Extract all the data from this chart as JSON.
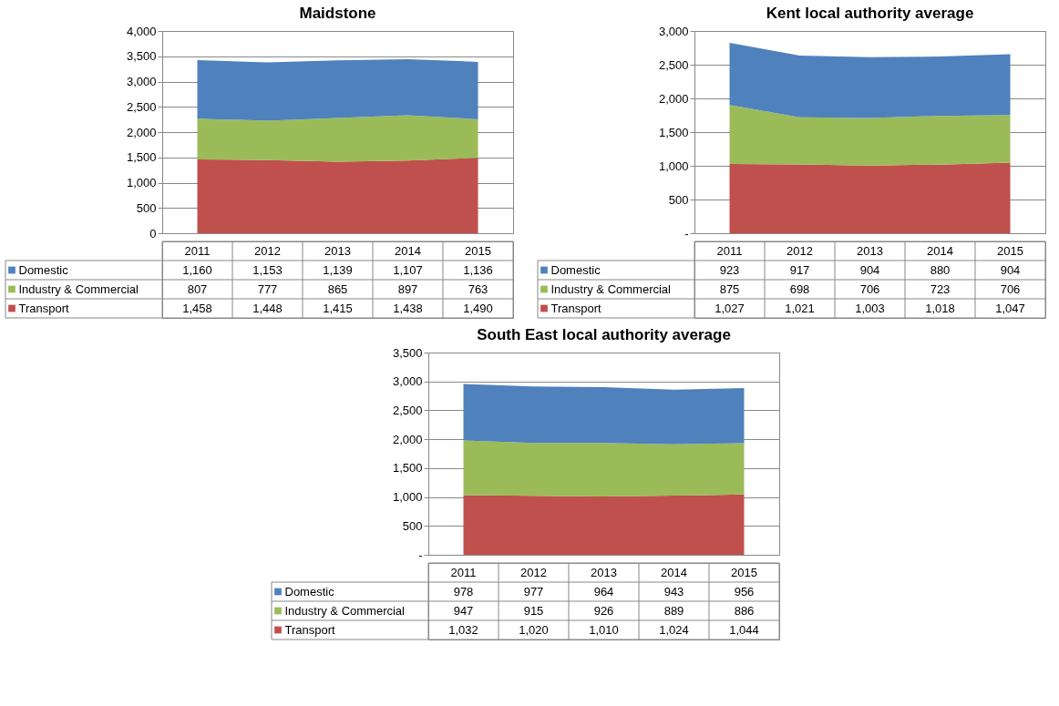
{
  "chart_data": [
    {
      "type": "area",
      "title": "Maidstone",
      "stacked": true,
      "categories": [
        "2011",
        "2012",
        "2013",
        "2014",
        "2015"
      ],
      "series": [
        {
          "name": "Transport",
          "color": "#c0504d",
          "values": [
            1458,
            1448,
            1415,
            1438,
            1490
          ],
          "value_labels": [
            "1,458",
            "1,448",
            "1,415",
            "1,438",
            "1,490"
          ]
        },
        {
          "name": "Industry & Commercial",
          "color": "#9bbb59",
          "values": [
            807,
            777,
            865,
            897,
            763
          ],
          "value_labels": [
            "807",
            "777",
            "865",
            "897",
            "763"
          ]
        },
        {
          "name": "Domestic",
          "color": "#4f81bd",
          "values": [
            1160,
            1153,
            1139,
            1107,
            1136
          ],
          "value_labels": [
            "1,160",
            "1,153",
            "1,139",
            "1,107",
            "1,136"
          ]
        }
      ],
      "ylim": [
        0,
        4000
      ],
      "yticks": [
        0,
        500,
        {
          "value": 1000,
          "label": "1,000"
        },
        {
          "value": 1500,
          "label": "1,500"
        },
        {
          "value": 2000,
          "label": "2,000"
        },
        {
          "value": 2500,
          "label": "2,500"
        },
        {
          "value": 3000,
          "label": "3,000"
        },
        {
          "value": 3500,
          "label": "3,500"
        },
        {
          "value": 4000,
          "label": "4,000"
        }
      ],
      "grid": "y",
      "legend": "bottom"
    },
    {
      "type": "area",
      "title": "Kent local authority average",
      "stacked": true,
      "categories": [
        "2011",
        "2012",
        "2013",
        "2014",
        "2015"
      ],
      "series": [
        {
          "name": "Transport",
          "color": "#c0504d",
          "values": [
            1027,
            1021,
            1003,
            1018,
            1047
          ],
          "value_labels": [
            "1,027",
            "1,021",
            "1,003",
            "1,018",
            "1,047"
          ]
        },
        {
          "name": "Industry & Commercial",
          "color": "#9bbb59",
          "values": [
            875,
            698,
            706,
            723,
            706
          ],
          "value_labels": [
            "875",
            "698",
            "706",
            "723",
            "706"
          ]
        },
        {
          "name": "Domestic",
          "color": "#4f81bd",
          "values": [
            923,
            917,
            904,
            880,
            904
          ],
          "value_labels": [
            "923",
            "917",
            "904",
            "880",
            "904"
          ]
        }
      ],
      "ylim": [
        0,
        3000
      ],
      "yticks": [
        {
          "value": 0,
          "label": "-"
        },
        500,
        {
          "value": 1000,
          "label": "1,000"
        },
        {
          "value": 1500,
          "label": "1,500"
        },
        {
          "value": 2000,
          "label": "2,000"
        },
        {
          "value": 2500,
          "label": "2,500"
        },
        {
          "value": 3000,
          "label": "3,000"
        }
      ],
      "grid": "y",
      "legend": "bottom"
    },
    {
      "type": "area",
      "title": "South East local authority average",
      "stacked": true,
      "categories": [
        "2011",
        "2012",
        "2013",
        "2014",
        "2015"
      ],
      "series": [
        {
          "name": "Transport",
          "color": "#c0504d",
          "values": [
            1032,
            1020,
            1010,
            1024,
            1044
          ],
          "value_labels": [
            "1,032",
            "1,020",
            "1,010",
            "1,024",
            "1,044"
          ]
        },
        {
          "name": "Industry & Commercial",
          "color": "#9bbb59",
          "values": [
            947,
            915,
            926,
            889,
            886
          ],
          "value_labels": [
            "947",
            "915",
            "926",
            "889",
            "886"
          ]
        },
        {
          "name": "Domestic",
          "color": "#4f81bd",
          "values": [
            978,
            977,
            964,
            943,
            956
          ],
          "value_labels": [
            "978",
            "977",
            "964",
            "943",
            "956"
          ]
        }
      ],
      "ylim": [
        0,
        3500
      ],
      "yticks": [
        {
          "value": 0,
          "label": "-"
        },
        500,
        {
          "value": 1000,
          "label": "1,000"
        },
        {
          "value": 1500,
          "label": "1,500"
        },
        {
          "value": 2000,
          "label": "2,000"
        },
        {
          "value": 2500,
          "label": "2,500"
        },
        {
          "value": 3000,
          "label": "3,000"
        },
        {
          "value": 3500,
          "label": "3,500"
        }
      ],
      "grid": "y",
      "legend": "bottom"
    }
  ]
}
